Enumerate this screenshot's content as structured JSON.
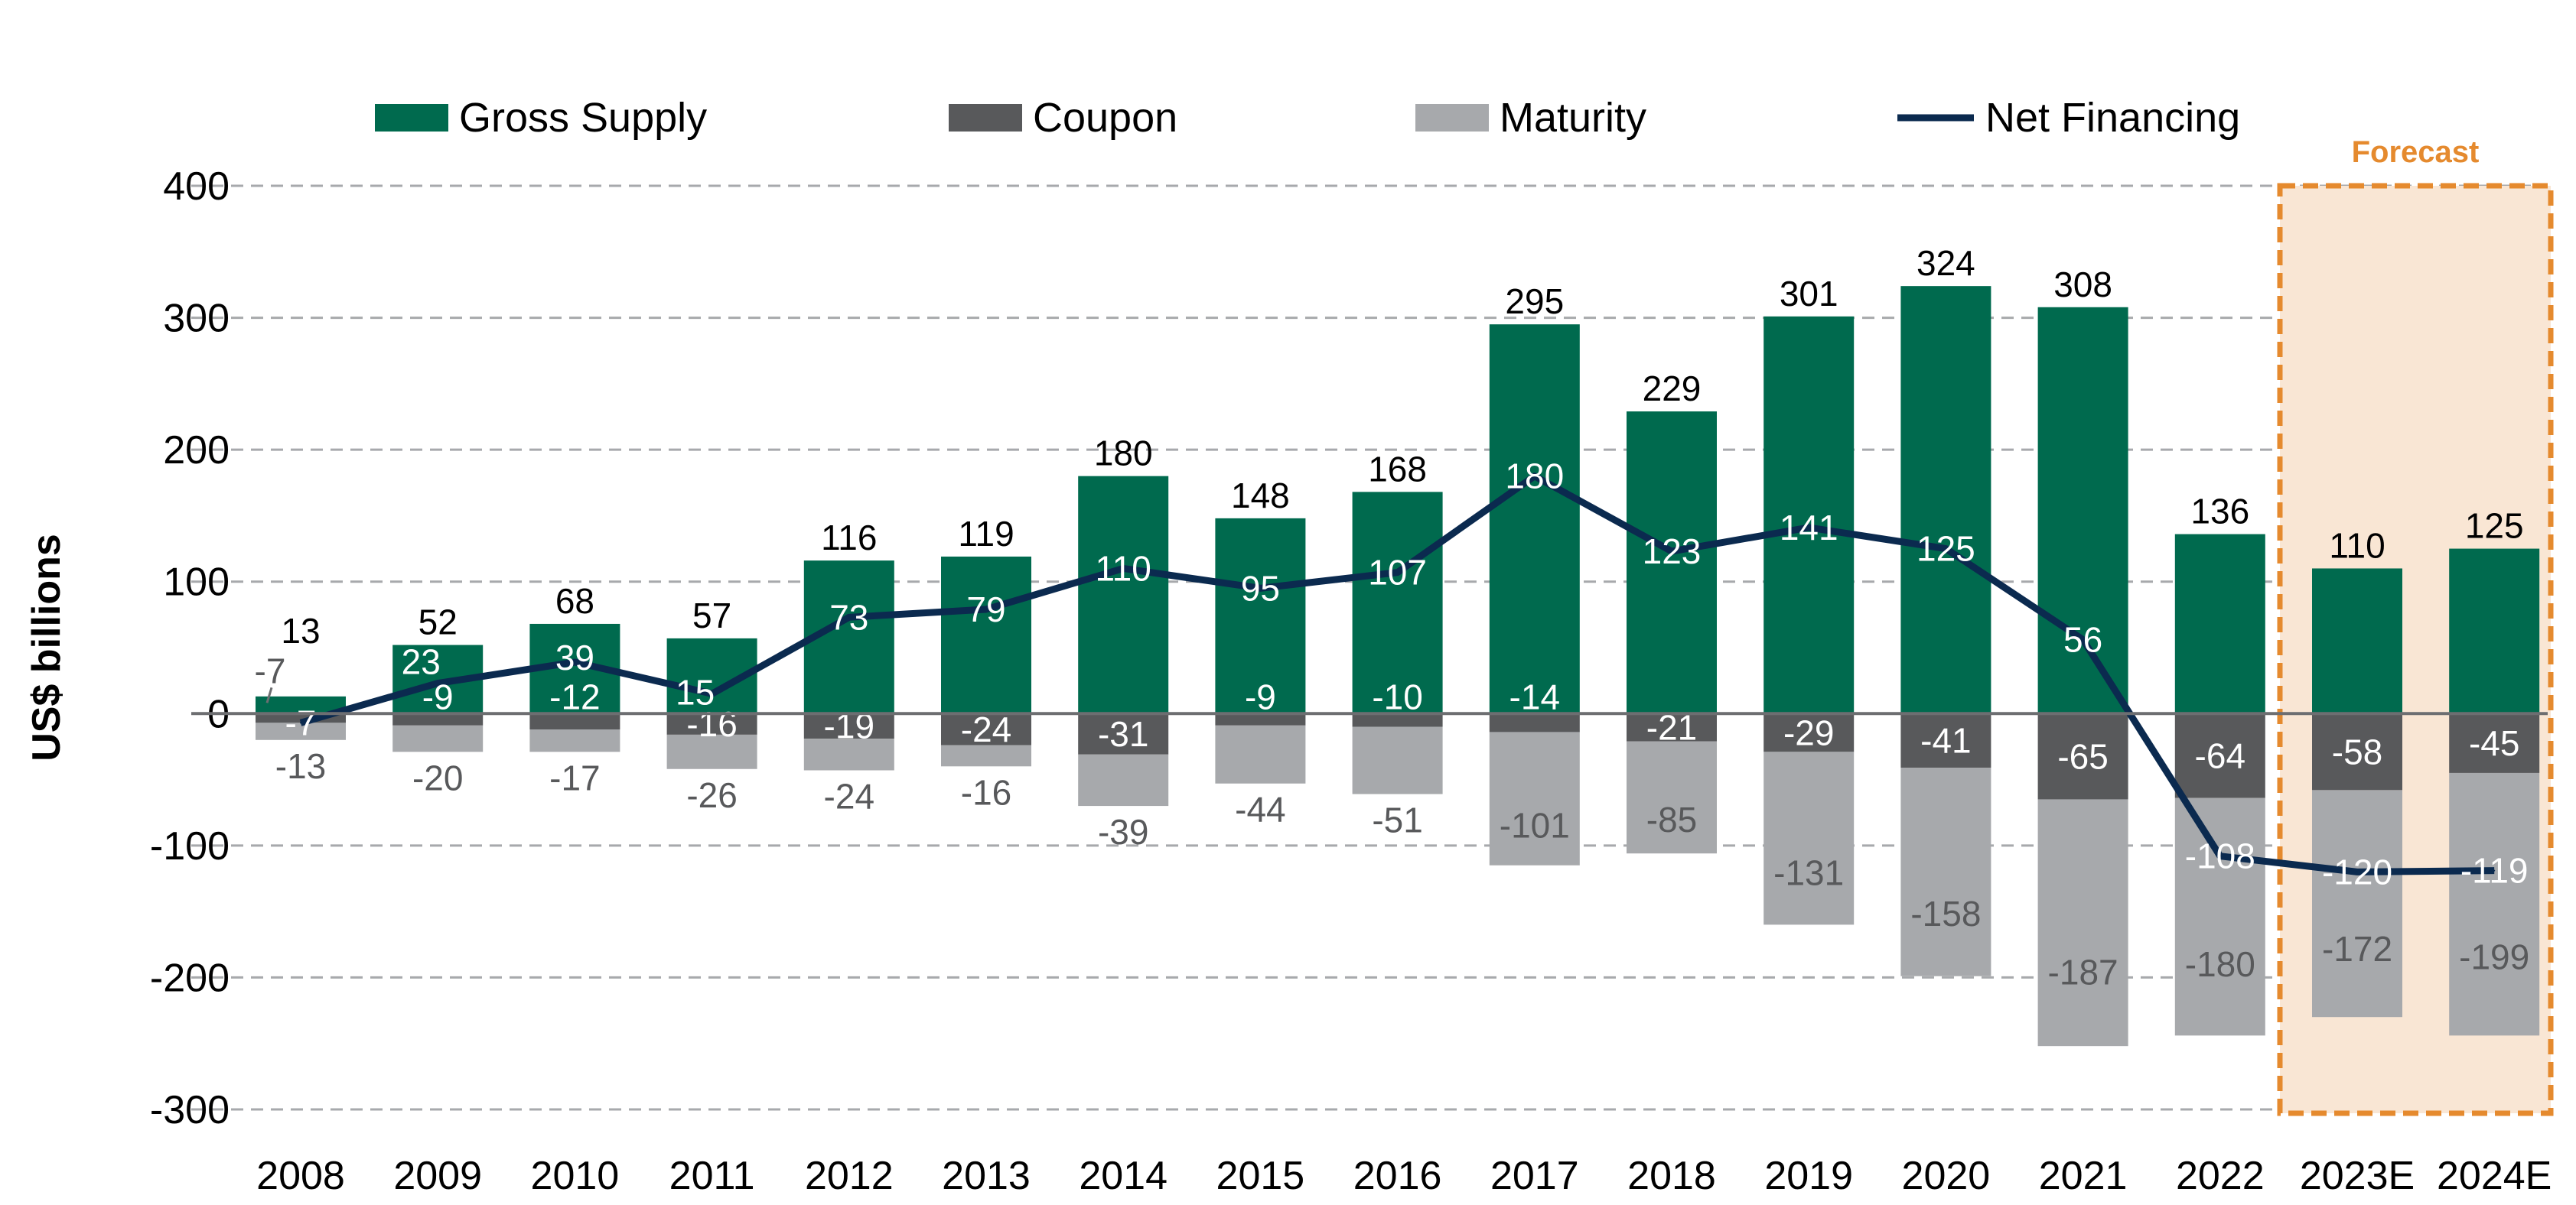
{
  "chart_data": {
    "type": "bar",
    "stacked": true,
    "ylabel": "US$ billions",
    "ylim": [
      -300,
      400
    ],
    "yticks": [
      400,
      300,
      200,
      100,
      0,
      -100,
      -200,
      -300
    ],
    "grid": true,
    "legend_position": "top",
    "categories": [
      "2008",
      "2009",
      "2010",
      "2011",
      "2012",
      "2013",
      "2014",
      "2015",
      "2016",
      "2017",
      "2018",
      "2019",
      "2020",
      "2021",
      "2022",
      "2023E",
      "2024E"
    ],
    "series": [
      {
        "name": "Gross Supply",
        "type": "bar",
        "color": "#006a4e",
        "values": [
          13,
          52,
          68,
          57,
          116,
          119,
          180,
          148,
          168,
          295,
          229,
          301,
          324,
          308,
          136,
          110,
          125
        ]
      },
      {
        "name": "Coupon",
        "type": "bar",
        "color": "#58595b",
        "values": [
          -7,
          -9,
          -12,
          -16,
          -19,
          -24,
          -31,
          -9,
          -10,
          -14,
          -21,
          -29,
          -41,
          -65,
          -64,
          -58,
          -45
        ]
      },
      {
        "name": "Maturity",
        "type": "bar",
        "color": "#a7a9ac",
        "values": [
          -13,
          -20,
          -17,
          -26,
          -24,
          -16,
          -39,
          -44,
          -51,
          -101,
          -85,
          -131,
          -158,
          -187,
          -180,
          -172,
          -199
        ]
      },
      {
        "name": "Net Financing",
        "type": "line",
        "color": "#0b2a4f",
        "values": [
          -7,
          23,
          39,
          15,
          73,
          79,
          110,
          95,
          107,
          180,
          123,
          141,
          125,
          56,
          -108,
          -120,
          -119
        ]
      }
    ],
    "annotations": [
      {
        "text": "Forecast",
        "categories": [
          "2023E",
          "2024E"
        ],
        "color": "#e58a2e"
      }
    ]
  }
}
